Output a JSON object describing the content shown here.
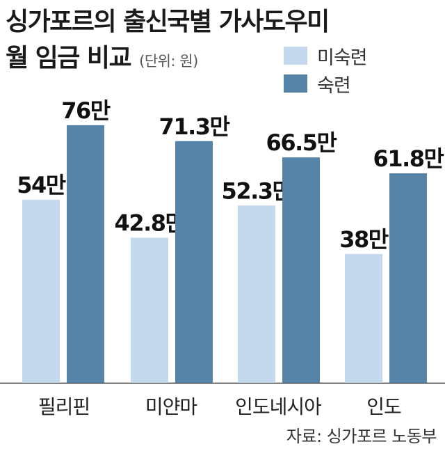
{
  "title": "싱가포르의 출신국별 가사도우미",
  "title_line2": "월 임금 비교",
  "unit": "(단위: 원)",
  "source": "자료: 싱가포르 노동부",
  "chart_data": {
    "type": "bar",
    "categories": [
      "필리핀",
      "미얀마",
      "인도네시아",
      "인도"
    ],
    "series": [
      {
        "name": "미숙련",
        "values": [
          54,
          42.8,
          52.3,
          38
        ],
        "labels": [
          "54만",
          "42.8만",
          "52.3만",
          "38만"
        ],
        "color": "#c5d9ee"
      },
      {
        "name": "숙련",
        "values": [
          76,
          71.3,
          66.5,
          61.8
        ],
        "labels": [
          "76만",
          "71.3만",
          "66.5만",
          "61.8만"
        ],
        "color": "#5684a8"
      }
    ],
    "ylim": [
      0,
      100
    ],
    "grid": false,
    "legend_position": "top-right"
  }
}
